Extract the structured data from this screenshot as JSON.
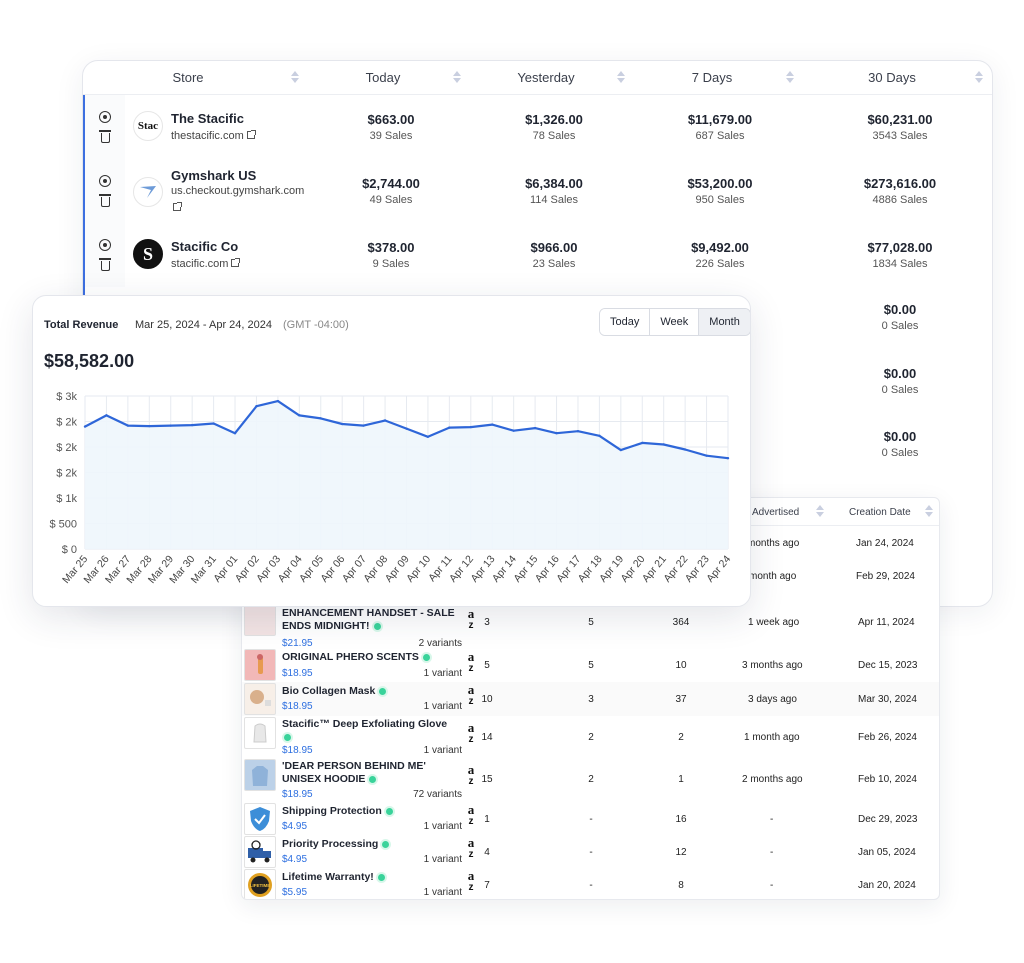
{
  "store_table": {
    "headers": [
      "Store",
      "Today",
      "Yesterday",
      "7 Days",
      "30 Days"
    ],
    "rows": [
      {
        "logo_text": "Stac",
        "name": "The Stacific",
        "url": "thestacific.com",
        "today": "$663.00",
        "today_sales": "39 Sales",
        "yesterday": "$1,326.00",
        "yesterday_sales": "78 Sales",
        "d7": "$11,679.00",
        "d7_sales": "687 Sales",
        "d30": "$60,231.00",
        "d30_sales": "3543 Sales"
      },
      {
        "logo_text": "",
        "name": "Gymshark US",
        "url": "us.checkout.gymshark.com",
        "today": "$2,744.00",
        "today_sales": "49 Sales",
        "yesterday": "$6,384.00",
        "yesterday_sales": "114 Sales",
        "d7": "$53,200.00",
        "d7_sales": "950 Sales",
        "d30": "$273,616.00",
        "d30_sales": "4886 Sales"
      },
      {
        "logo_text": "S",
        "name": "Stacific Co",
        "url": "stacific.com",
        "today": "$378.00",
        "today_sales": "9 Sales",
        "yesterday": "$966.00",
        "yesterday_sales": "23 Sales",
        "d7": "$9,492.00",
        "d7_sales": "226 Sales",
        "d30": "$77,028.00",
        "d30_sales": "1834 Sales"
      }
    ],
    "extra_30d": [
      {
        "value": "$0.00",
        "sales": "0 Sales"
      },
      {
        "value": "$0.00",
        "sales": "0 Sales"
      },
      {
        "value": "$0.00",
        "sales": "0 Sales"
      }
    ]
  },
  "revenue": {
    "title": "Total Revenue",
    "range": "Mar 25, 2024 - Apr 24, 2024",
    "timezone": "(GMT -04:00)",
    "segments": [
      "Today",
      "Week",
      "Month"
    ],
    "selected_segment": "Month",
    "total": "$58,582.00"
  },
  "chart_data": {
    "type": "area",
    "title": "",
    "xlabel": "",
    "ylabel": "",
    "x": [
      "Mar 25",
      "Mar 26",
      "Mar 27",
      "Mar 28",
      "Mar 29",
      "Mar 30",
      "Mar 31",
      "Apr 01",
      "Apr 02",
      "Apr 03",
      "Apr 04",
      "Apr 05",
      "Apr 06",
      "Apr 07",
      "Apr 08",
      "Apr 09",
      "Apr 10",
      "Apr 11",
      "Apr 12",
      "Apr 13",
      "Apr 14",
      "Apr 15",
      "Apr 16",
      "Apr 17",
      "Apr 18",
      "Apr 19",
      "Apr 20",
      "Apr 21",
      "Apr 22",
      "Apr 23",
      "Apr 24"
    ],
    "values": [
      2400,
      2620,
      2420,
      2410,
      2420,
      2430,
      2460,
      2270,
      2800,
      2900,
      2620,
      2560,
      2450,
      2420,
      2520,
      2360,
      2200,
      2380,
      2390,
      2440,
      2320,
      2370,
      2270,
      2310,
      2220,
      1940,
      2080,
      2050,
      1950,
      1830,
      1780
    ],
    "ytick_values": [
      0,
      500,
      1000,
      1500,
      2000,
      2500,
      3000
    ],
    "ytick_labels": [
      "$ 0",
      "$ 500",
      "$ 1k",
      "$ 2k",
      "$ 2k",
      "$ 2k",
      "$ 3k"
    ],
    "ylim": [
      0,
      3000
    ],
    "grid": true,
    "colors": {
      "line": "#2e66d8",
      "fill": "#eef6fc",
      "grid": "#e6eaf0"
    }
  },
  "product_table": {
    "headers": [
      "Advertised",
      "Creation Date"
    ],
    "top_rows": [
      {
        "advertised": "months ago",
        "created": "Jan 24, 2024"
      },
      {
        "advertised": "month ago",
        "created": "Feb 29, 2024"
      }
    ],
    "rows": [
      {
        "title": "ENHANCEMENT HANDSET - SALE ENDS MIDNIGHT!",
        "price": "$21.95",
        "variants": "2 variants",
        "c1": "3",
        "c2": "5",
        "c3": "364",
        "advertised": "1 week ago",
        "created": "Apr 11, 2024"
      },
      {
        "title": "ORIGINAL PHERO SCENTS",
        "price": "$18.95",
        "variants": "1 variant",
        "c1": "5",
        "c2": "5",
        "c3": "10",
        "advertised": "3 months ago",
        "created": "Dec 15, 2023"
      },
      {
        "title": "Bio Collagen Mask",
        "price": "$18.95",
        "variants": "1 variant",
        "c1": "10",
        "c2": "3",
        "c3": "37",
        "advertised": "3 days ago",
        "created": "Mar 30, 2024"
      },
      {
        "title": "Stacific™ Deep Exfoliating Glove",
        "price": "$18.95",
        "variants": "1 variant",
        "c1": "14",
        "c2": "2",
        "c3": "2",
        "advertised": "1 month ago",
        "created": "Feb 26, 2024"
      },
      {
        "title": "'DEAR PERSON BEHIND ME' UNISEX HOODIE",
        "price": "$18.95",
        "variants": "72 variants",
        "c1": "15",
        "c2": "2",
        "c3": "1",
        "advertised": "2 months ago",
        "created": "Feb 10, 2024"
      },
      {
        "title": "Shipping Protection",
        "price": "$4.95",
        "variants": "1 variant",
        "c1": "1",
        "c2": "-",
        "c3": "16",
        "advertised": "-",
        "created": "Dec 29, 2023"
      },
      {
        "title": "Priority Processing",
        "price": "$4.95",
        "variants": "1 variant",
        "c1": "4",
        "c2": "-",
        "c3": "12",
        "advertised": "-",
        "created": "Jan 05, 2024"
      },
      {
        "title": "Lifetime Warranty!",
        "price": "$5.95",
        "variants": "1 variant",
        "c1": "7",
        "c2": "-",
        "c3": "8",
        "advertised": "-",
        "created": "Jan 20, 2024"
      }
    ],
    "marketplace_glyph": "a",
    "marketplace_swoosh": "z",
    "thumb_label_lifetime": "LIFETIME"
  },
  "icons": {
    "locate": "crosshair-target-icon",
    "delete": "trash-icon",
    "external": "external-link-icon",
    "sort": "sort-arrows-icon",
    "status": "active-dot-icon",
    "marketplace": "amazon-logo-icon"
  }
}
